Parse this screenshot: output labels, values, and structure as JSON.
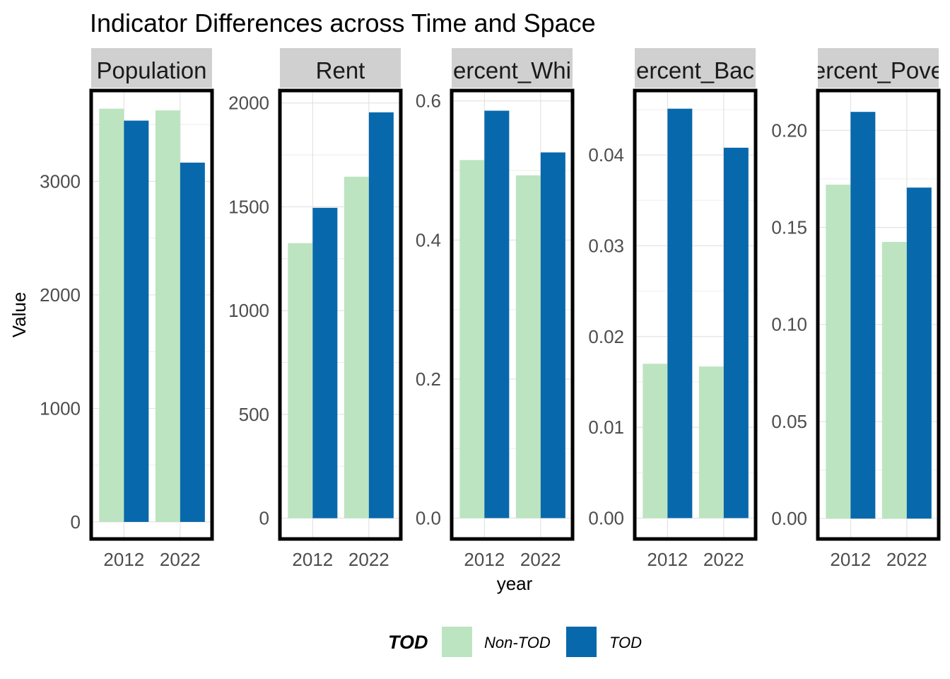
{
  "chart_data": {
    "type": "bar",
    "title": "Indicator Differences across Time and Space",
    "xlabel": "year",
    "ylabel": "Value",
    "legend": {
      "title": "TOD",
      "position": "bottom",
      "entries": [
        {
          "label": "Non-TOD",
          "color": "#bce4c0"
        },
        {
          "label": "TOD",
          "color": "#0868ac"
        }
      ]
    },
    "categories": [
      "2012",
      "2022"
    ],
    "grid": true,
    "panels": [
      {
        "strip": "Population",
        "ylim": [
          -150,
          3800
        ],
        "yticks": [
          0,
          1000,
          2000,
          3000
        ],
        "ytick_labels": [
          "0",
          "1000",
          "2000",
          "3000"
        ],
        "series": [
          {
            "name": "Non-TOD",
            "values": [
              3640,
              3625
            ]
          },
          {
            "name": "TOD",
            "values": [
              3535,
              3165
            ]
          }
        ]
      },
      {
        "strip": "Rent",
        "ylim": [
          -100,
          2060
        ],
        "yticks": [
          0,
          500,
          1000,
          1500,
          2000
        ],
        "ytick_labels": [
          "0",
          "500",
          "1000",
          "1500",
          "2000"
        ],
        "series": [
          {
            "name": "Non-TOD",
            "values": [
              1325,
              1645
            ]
          },
          {
            "name": "TOD",
            "values": [
              1495,
              1955
            ]
          }
        ]
      },
      {
        "strip": "ercent_Whi",
        "ylim": [
          -0.03,
          0.615
        ],
        "yticks": [
          0.0,
          0.2,
          0.4,
          0.6
        ],
        "ytick_labels": [
          "0.0",
          "0.2",
          "0.4",
          "0.6"
        ],
        "series": [
          {
            "name": "Non-TOD",
            "values": [
              0.515,
              0.493
            ]
          },
          {
            "name": "TOD",
            "values": [
              0.586,
              0.526
            ]
          }
        ]
      },
      {
        "strip": "ercent_Bac",
        "ylim": [
          -0.0023,
          0.0471
        ],
        "yticks": [
          0.0,
          0.01,
          0.02,
          0.03,
          0.04
        ],
        "ytick_labels": [
          "0.00",
          "0.01",
          "0.02",
          "0.03",
          "0.04"
        ],
        "series": [
          {
            "name": "Non-TOD",
            "values": [
              0.017,
              0.0167
            ]
          },
          {
            "name": "TOD",
            "values": [
              0.0451,
              0.0408
            ]
          }
        ]
      },
      {
        "strip": "ercent_Pove",
        "ylim": [
          -0.0105,
          0.2205
        ],
        "yticks": [
          0.0,
          0.05,
          0.1,
          0.15,
          0.2
        ],
        "ytick_labels": [
          "0.00",
          "0.05",
          "0.10",
          "0.15",
          "0.20"
        ],
        "series": [
          {
            "name": "Non-TOD",
            "values": [
              0.172,
              0.1425
            ]
          },
          {
            "name": "TOD",
            "values": [
              0.2095,
              0.1705
            ]
          }
        ]
      }
    ]
  }
}
